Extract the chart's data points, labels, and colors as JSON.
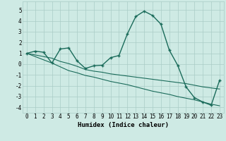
{
  "xlabel": "Humidex (Indice chaleur)",
  "background_color": "#ceeae4",
  "grid_color": "#aaccc6",
  "line_color": "#1a6b5a",
  "xlim": [
    -0.5,
    23.5
  ],
  "ylim": [
    -4.5,
    5.8
  ],
  "x": [
    0,
    1,
    2,
    3,
    4,
    5,
    6,
    7,
    8,
    9,
    10,
    11,
    12,
    13,
    14,
    15,
    16,
    17,
    18,
    19,
    20,
    21,
    22,
    23
  ],
  "y_main": [
    1.0,
    1.2,
    1.1,
    0.1,
    1.4,
    1.5,
    0.3,
    -0.4,
    -0.15,
    -0.1,
    0.6,
    0.8,
    2.8,
    4.4,
    4.9,
    4.5,
    3.7,
    1.3,
    -0.1,
    -2.1,
    -3.1,
    -3.5,
    -3.8,
    -1.5
  ],
  "y_line1": [
    1.0,
    0.85,
    0.7,
    0.55,
    0.25,
    0.05,
    -0.2,
    -0.5,
    -0.65,
    -0.75,
    -0.9,
    -1.0,
    -1.1,
    -1.2,
    -1.3,
    -1.4,
    -1.5,
    -1.6,
    -1.7,
    -1.8,
    -1.95,
    -2.1,
    -2.2,
    -2.3
  ],
  "y_line2": [
    1.0,
    0.7,
    0.4,
    0.1,
    -0.25,
    -0.6,
    -0.8,
    -1.05,
    -1.2,
    -1.4,
    -1.6,
    -1.75,
    -1.9,
    -2.1,
    -2.3,
    -2.5,
    -2.65,
    -2.8,
    -3.0,
    -3.15,
    -3.3,
    -3.5,
    -3.7,
    -3.85
  ],
  "xtick_labels": [
    "0",
    "1",
    "2",
    "3",
    "4",
    "5",
    "6",
    "7",
    "8",
    "9",
    "10",
    "11",
    "12",
    "13",
    "14",
    "15",
    "16",
    "17",
    "18",
    "19",
    "20",
    "21",
    "22",
    "23"
  ],
  "ytick_values": [
    -4,
    -3,
    -2,
    -1,
    0,
    1,
    2,
    3,
    4,
    5
  ],
  "fontsize_xlabel": 6.5,
  "fontsize_ticks": 5.5
}
